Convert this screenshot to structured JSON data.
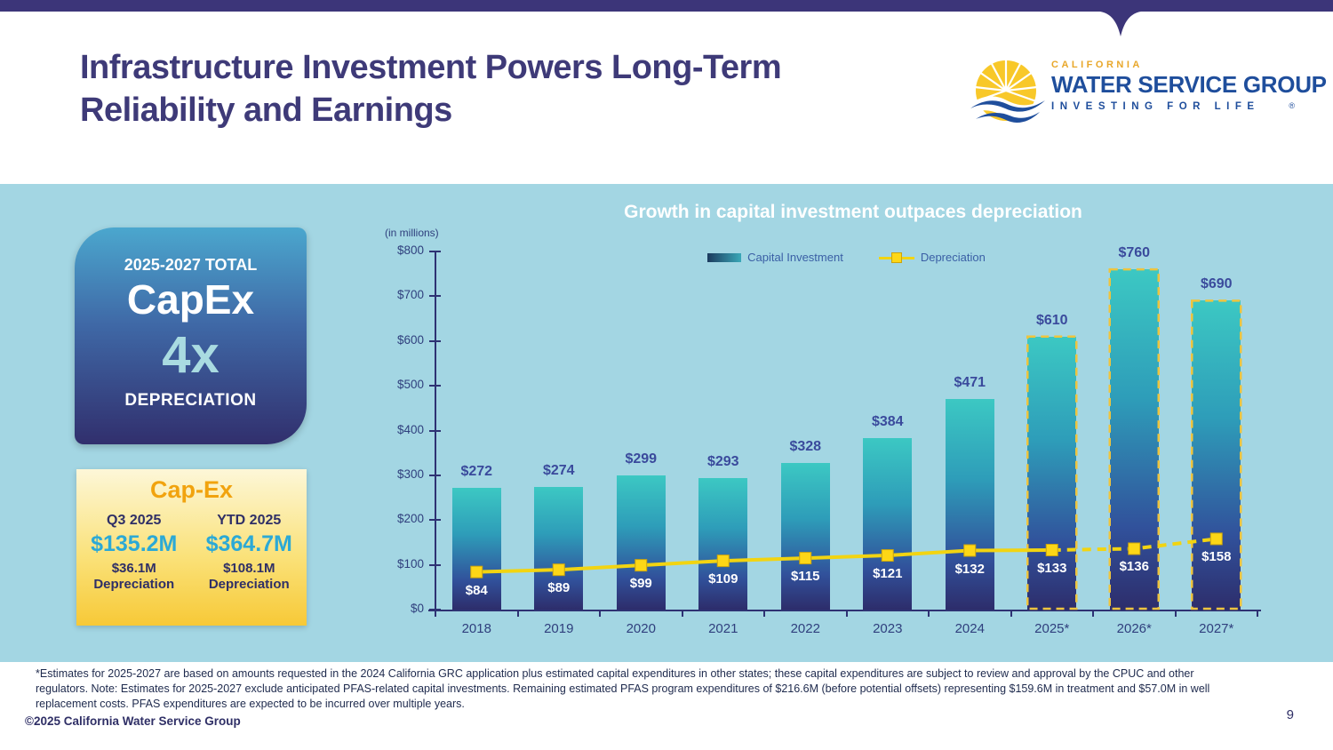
{
  "slide": {
    "title_line1": "Infrastructure Investment Powers Long-Term",
    "title_line2": "Reliability and Earnings",
    "page_number": "9",
    "copyright": "©2025 California Water Service Group",
    "footnote_lines": [
      "*Estimates for 2025-2027 are based on amounts requested in the 2024 California GRC application plus estimated capital expenditures in other states; these capital expenditures are subject to review and approval by the CPUC and other",
      "regulators. Note: Estimates for 2025-2027 exclude anticipated PFAS-related capital investments. Remaining estimated PFAS program expenditures of $216.6M (before potential offsets) representing $159.6M in treatment and $57.0M in well",
      "replacement costs. PFAS expenditures are expected to be incurred over multiple years."
    ]
  },
  "logo": {
    "brand_top": "CALIFORNIA",
    "brand_main": "WATER SERVICE GROUP",
    "brand_tagline": "INVESTING FOR LIFE",
    "registered": "®"
  },
  "capex_total_box": {
    "line1": "2025-2027 TOTAL",
    "line2": "CapEx",
    "line3": "4x",
    "line4": "DEPRECIATION"
  },
  "capex_box": {
    "title": "Cap-Ex",
    "columns": [
      {
        "period": "Q3 2025",
        "amount": "$135.2M",
        "dep_amount": "$36.1M",
        "dep_label": "Depreciation"
      },
      {
        "period": "YTD 2025",
        "amount": "$364.7M",
        "dep_amount": "$108.1M",
        "dep_label": "Depreciation"
      }
    ]
  },
  "chart_data": {
    "type": "bar",
    "title": "Growth in capital investment outpaces depreciation",
    "units_label": "(in millions)",
    "categories": [
      "2018",
      "2019",
      "2020",
      "2021",
      "2022",
      "2023",
      "2024",
      "2025*",
      "2026*",
      "2027*"
    ],
    "series": [
      {
        "name": "Capital Investment",
        "type": "bar",
        "values": [
          272,
          274,
          299,
          293,
          328,
          384,
          471,
          610,
          760,
          690
        ],
        "estimated": [
          false,
          false,
          false,
          false,
          false,
          false,
          false,
          true,
          true,
          true
        ]
      },
      {
        "name": "Depreciation",
        "type": "line",
        "values": [
          84,
          89,
          99,
          109,
          115,
          121,
          132,
          133,
          136,
          158
        ]
      }
    ],
    "projection_start_index": 7,
    "ylim": [
      0,
      800
    ],
    "ytick_step": 100,
    "ytick_prefix": "$",
    "legend_position": "top",
    "grid": "off",
    "colors": {
      "bar_top": "#3cc8c3",
      "bar_bottom": "#2d2d6b",
      "line": "#f2d411",
      "marker_fill": "#fdd716",
      "marker_border": "#caa30f",
      "estimated_border": "#eec43e",
      "axis": "#2e3273",
      "bar_label": "#3a4a9c",
      "dep_label": "#ffffff",
      "band_background": "#a3d6e3"
    }
  }
}
